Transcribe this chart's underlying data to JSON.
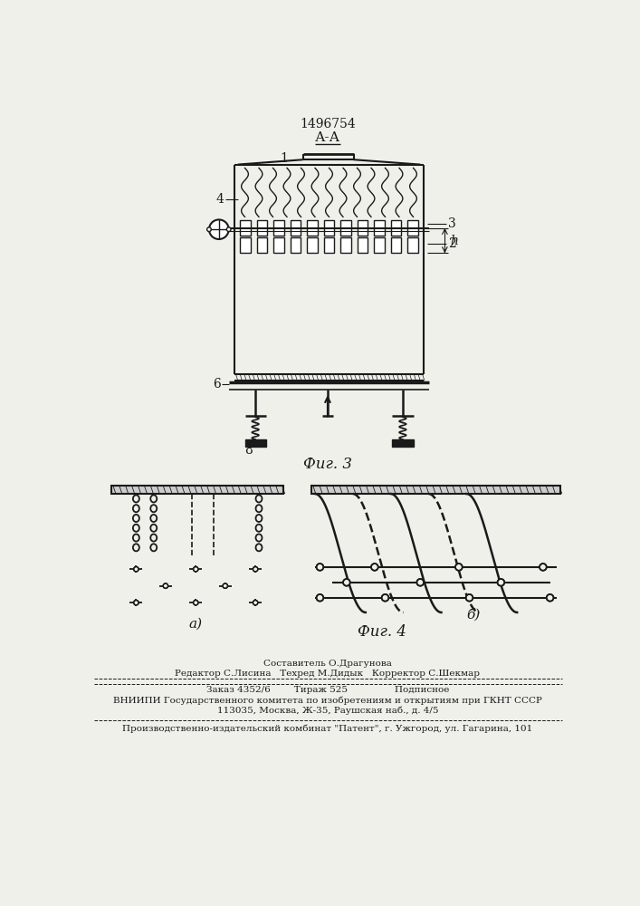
{
  "patent_number": "1496754",
  "bg_color": "#f0f0eb",
  "line_color": "#1a1a1a",
  "footer_text1": "Составитель О.Драгунова",
  "footer_text2": "Редактор С.Лисина   Техред М.Дидык   Корректор С.Шекмар",
  "footer_text3": "Заказ 4352/6        Тираж 525                Подписное",
  "footer_text4": "ВНИИПИ Государственного комитета по изобретениям и открытиям при ГКНТ СССР",
  "footer_text5": "113035, Москва, Ж-35, Раушская наб., д. 4/5",
  "footer_text6": "Производственно-издательский комбинат \"Патент\", г. Ужгород, ул. Гагарина, 101"
}
